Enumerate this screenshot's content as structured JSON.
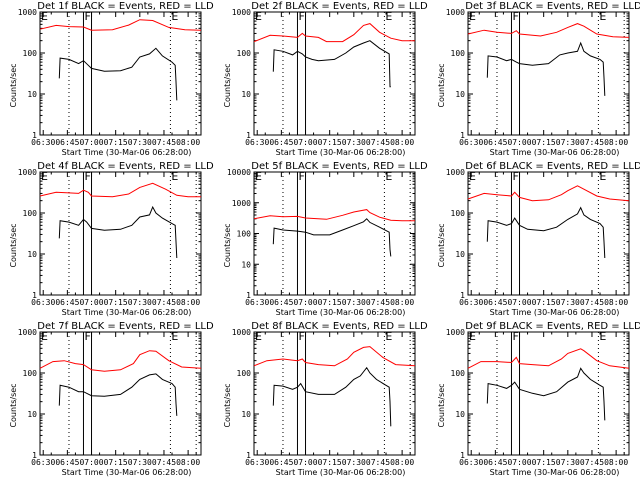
{
  "chart_data": {
    "type": "line",
    "layout": "3x3 grid",
    "xlabel": "Start Time (30-Mar-06 06:28:00)",
    "ylabel": "Counts/sec",
    "yscale": "log",
    "xrange_minutes_from_0628": [
      0,
      100
    ],
    "x_tick_labels": [
      "06:30",
      "06:45",
      "07:00",
      "07:15",
      "07:30",
      "07:45",
      "08:00"
    ],
    "x_tick_minutes": [
      2,
      17,
      32,
      47,
      62,
      77,
      92
    ],
    "dotted_lines_minutes": [
      18,
      81,
      97
    ],
    "solid_lines_minutes": [
      27,
      32
    ],
    "markers": [
      {
        "label": "E",
        "minute": 0
      },
      {
        "label": "F",
        "minute": 27
      },
      {
        "label": "E",
        "minute": 81
      }
    ],
    "series_colors": {
      "events": "#000000",
      "lld": "#ff0000"
    },
    "legend": "BLACK = Events, RED = LLD",
    "panels": [
      {
        "title": "Det 1f BLACK = Events, RED = LLD",
        "ylim": [
          1,
          1000
        ],
        "y_ticks": [
          "1",
          "10",
          "100",
          "1000"
        ],
        "lld": {
          "x": [
            0,
            10,
            18,
            27,
            32,
            45,
            55,
            62,
            70,
            80,
            90,
            100
          ],
          "y": [
            380,
            470,
            440,
            430,
            360,
            370,
            480,
            650,
            620,
            420,
            370,
            360
          ]
        },
        "events": {
          "x": [
            12,
            12.5,
            18,
            24,
            27,
            30,
            32,
            40,
            50,
            57,
            62,
            68,
            72,
            76,
            82,
            84,
            84.5,
            85
          ],
          "y": [
            24,
            75,
            70,
            55,
            65,
            50,
            42,
            36,
            37,
            45,
            80,
            95,
            130,
            85,
            60,
            50,
            20,
            7
          ]
        }
      },
      {
        "title": "Det 2f BLACK = Events, RED = LLD",
        "ylim": [
          1,
          1000
        ],
        "y_ticks": [
          "1",
          "10",
          "100",
          "1000"
        ],
        "lld": {
          "x": [
            0,
            10,
            18,
            27,
            30,
            32,
            40,
            45,
            55,
            62,
            68,
            72,
            78,
            85,
            92,
            100
          ],
          "y": [
            190,
            270,
            260,
            240,
            300,
            260,
            240,
            190,
            190,
            280,
            470,
            520,
            320,
            230,
            200,
            200
          ]
        },
        "events": {
          "x": [
            12,
            12.5,
            18,
            24,
            27,
            30,
            32,
            36,
            40,
            50,
            57,
            62,
            68,
            72,
            78,
            84,
            84.5,
            85
          ],
          "y": [
            35,
            120,
            110,
            90,
            110,
            95,
            80,
            70,
            65,
            70,
            100,
            140,
            175,
            200,
            130,
            95,
            15,
            15
          ]
        }
      },
      {
        "title": "Det 3f BLACK = Events, RED = LLD",
        "ylim": [
          1,
          1000
        ],
        "y_ticks": [
          "1",
          "10",
          "100",
          "1000"
        ],
        "lld": {
          "x": [
            0,
            10,
            18,
            27,
            30,
            32,
            45,
            55,
            62,
            68,
            72,
            80,
            90,
            100
          ],
          "y": [
            290,
            360,
            320,
            300,
            350,
            290,
            260,
            320,
            420,
            520,
            450,
            290,
            250,
            240
          ]
        },
        "events": {
          "x": [
            12,
            12.5,
            18,
            24,
            27,
            30,
            32,
            40,
            50,
            57,
            62,
            68,
            70,
            72,
            76,
            82,
            84,
            84.5,
            85
          ],
          "y": [
            25,
            85,
            80,
            65,
            70,
            60,
            55,
            50,
            55,
            90,
            100,
            110,
            175,
            110,
            85,
            70,
            60,
            25,
            9
          ]
        }
      },
      {
        "title": "Det 4f BLACK = Events, RED = LLD",
        "ylim": [
          1,
          1000
        ],
        "y_ticks": [
          "1",
          "10",
          "100",
          "1000"
        ],
        "lld": {
          "x": [
            0,
            10,
            18,
            24,
            27,
            30,
            32,
            45,
            55,
            62,
            70,
            78,
            85,
            92,
            100
          ],
          "y": [
            260,
            320,
            310,
            300,
            360,
            320,
            260,
            250,
            290,
            420,
            530,
            380,
            270,
            250,
            250
          ]
        },
        "events": {
          "x": [
            12,
            12.5,
            18,
            24,
            27,
            29,
            32,
            40,
            50,
            57,
            62,
            68,
            70,
            72,
            76,
            82,
            84,
            84.5,
            85
          ],
          "y": [
            24,
            65,
            60,
            50,
            70,
            60,
            42,
            38,
            40,
            50,
            80,
            90,
            140,
            100,
            75,
            55,
            50,
            20,
            8
          ]
        }
      },
      {
        "title": "Det 5f BLACK = Events, RED = LLD",
        "ylim": [
          1,
          10000
        ],
        "y_ticks": [
          "1",
          "10",
          "100",
          "1000",
          "10000"
        ],
        "lld": {
          "x": [
            0,
            10,
            18,
            27,
            32,
            45,
            55,
            62,
            70,
            72,
            78,
            85,
            92,
            100
          ],
          "y": [
            300,
            380,
            350,
            360,
            320,
            290,
            390,
            500,
            600,
            480,
            340,
            270,
            260,
            260
          ]
        },
        "events": {
          "x": [
            12,
            12.5,
            18,
            27,
            32,
            37,
            47,
            55,
            62,
            68,
            70,
            72,
            78,
            84,
            84.5,
            85
          ],
          "y": [
            45,
            150,
            130,
            120,
            110,
            90,
            90,
            130,
            180,
            240,
            300,
            230,
            160,
            110,
            30,
            18
          ]
        }
      },
      {
        "title": "Det 6f BLACK = Events, RED = LLD",
        "ylim": [
          1,
          1000
        ],
        "y_ticks": [
          "1",
          "10",
          "100",
          "1000"
        ],
        "lld": {
          "x": [
            0,
            10,
            18,
            27,
            29,
            32,
            40,
            50,
            58,
            62,
            68,
            72,
            80,
            88,
            100
          ],
          "y": [
            220,
            300,
            280,
            260,
            320,
            240,
            200,
            210,
            280,
            350,
            460,
            380,
            260,
            220,
            200
          ]
        },
        "events": {
          "x": [
            12,
            12.5,
            18,
            24,
            27,
            29,
            32,
            37,
            47,
            55,
            62,
            68,
            70,
            72,
            76,
            82,
            84,
            84.5,
            85
          ],
          "y": [
            20,
            65,
            60,
            50,
            55,
            75,
            50,
            40,
            37,
            45,
            70,
            95,
            135,
            90,
            70,
            55,
            45,
            20,
            8
          ]
        }
      },
      {
        "title": "Det 7f BLACK = Events, RED = LLD",
        "ylim": [
          1,
          1000
        ],
        "y_ticks": [
          "1",
          "10",
          "100",
          "1000"
        ],
        "lld": {
          "x": [
            0,
            8,
            15,
            22,
            27,
            32,
            40,
            50,
            58,
            62,
            68,
            72,
            80,
            88,
            100
          ],
          "y": [
            130,
            190,
            200,
            170,
            160,
            120,
            110,
            120,
            170,
            280,
            350,
            340,
            200,
            140,
            130
          ]
        },
        "events": {
          "x": [
            12,
            12.5,
            18,
            24,
            27,
            32,
            40,
            50,
            57,
            62,
            68,
            72,
            76,
            82,
            84,
            84.5,
            85
          ],
          "y": [
            16,
            50,
            45,
            35,
            35,
            28,
            27,
            30,
            45,
            70,
            90,
            95,
            70,
            55,
            45,
            18,
            9
          ]
        }
      },
      {
        "title": "Det 8f BLACK = Events, RED = LLD",
        "ylim": [
          1,
          1000
        ],
        "y_ticks": [
          "1",
          "10",
          "100",
          "1000"
        ],
        "lld": {
          "x": [
            0,
            8,
            18,
            27,
            30,
            32,
            40,
            50,
            58,
            62,
            68,
            72,
            80,
            88,
            100
          ],
          "y": [
            150,
            200,
            220,
            200,
            220,
            180,
            160,
            150,
            220,
            320,
            420,
            440,
            240,
            160,
            150
          ]
        },
        "events": {
          "x": [
            12,
            12.5,
            18,
            24,
            27,
            29,
            32,
            40,
            50,
            57,
            62,
            66,
            70,
            72,
            76,
            82,
            84,
            84.5,
            85
          ],
          "y": [
            16,
            50,
            48,
            40,
            45,
            55,
            35,
            30,
            30,
            45,
            70,
            85,
            135,
            100,
            70,
            50,
            45,
            20,
            5
          ]
        }
      },
      {
        "title": "Det 9f BLACK = Events, RED = LLD",
        "ylim": [
          1,
          1000
        ],
        "y_ticks": [
          "1",
          "10",
          "100",
          "1000"
        ],
        "lld": {
          "x": [
            0,
            8,
            18,
            27,
            30,
            32,
            40,
            50,
            58,
            62,
            70,
            72,
            80,
            88,
            100
          ],
          "y": [
            130,
            190,
            190,
            180,
            240,
            170,
            160,
            150,
            220,
            300,
            390,
            350,
            200,
            150,
            130
          ]
        },
        "events": {
          "x": [
            12,
            12.5,
            18,
            24,
            27,
            29,
            32,
            40,
            47,
            55,
            62,
            68,
            70,
            72,
            76,
            82,
            84,
            84.5,
            85
          ],
          "y": [
            18,
            55,
            50,
            42,
            50,
            60,
            40,
            32,
            28,
            35,
            60,
            80,
            130,
            100,
            70,
            50,
            45,
            20,
            7
          ]
        }
      }
    ]
  }
}
